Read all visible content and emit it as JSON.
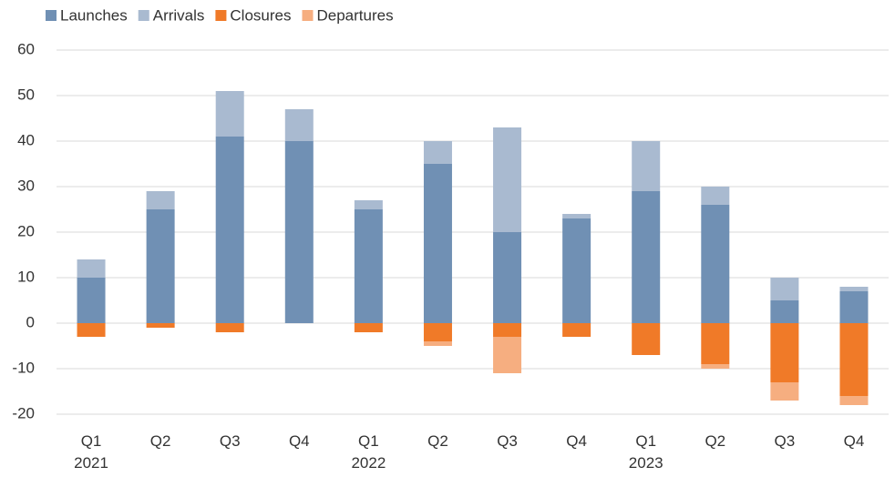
{
  "chart_data": {
    "type": "stacked_bar",
    "categories": [
      "Q1\n2021",
      "Q2",
      "Q3",
      "Q4",
      "Q1\n2022",
      "Q2",
      "Q3",
      "Q4",
      "Q1\n2023",
      "Q2",
      "Q3",
      "Q4"
    ],
    "series": [
      {
        "name": "Launches",
        "color": "#7090b4",
        "values": [
          10,
          25,
          41,
          40,
          25,
          35,
          20,
          23,
          29,
          26,
          5,
          7
        ]
      },
      {
        "name": "Arrivals",
        "color": "#a9bad0",
        "values": [
          4,
          4,
          10,
          7,
          2,
          5,
          23,
          1,
          11,
          4,
          5,
          1
        ]
      },
      {
        "name": "Closures",
        "color": "#f07a28",
        "values": [
          -3,
          -1,
          -2,
          0,
          -2,
          -4,
          -3,
          -3,
          -7,
          -9,
          -13,
          -16
        ]
      },
      {
        "name": "Departures",
        "color": "#f6ae80",
        "values": [
          0,
          0,
          0,
          0,
          0,
          -1,
          -8,
          0,
          0,
          -1,
          -4,
          -2
        ]
      }
    ],
    "ylim": [
      -20,
      60
    ],
    "yticks": [
      -20,
      -10,
      0,
      10,
      20,
      30,
      40,
      50,
      60
    ],
    "grid": true,
    "legend": "top-left"
  }
}
